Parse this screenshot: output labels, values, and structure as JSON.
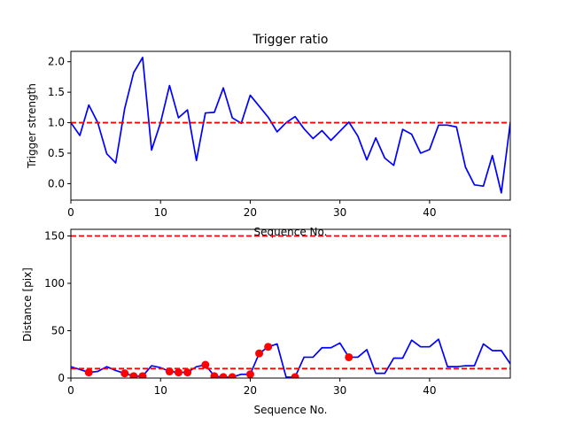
{
  "chart_data": [
    {
      "type": "line",
      "title": "Trigger ratio",
      "xlabel": "Sequence No.",
      "ylabel": "Trigger strength",
      "xlim": [
        0,
        49
      ],
      "ylim": [
        -0.27,
        2.17
      ],
      "xticks": [
        0,
        10,
        20,
        30,
        40
      ],
      "yticks": [
        0.0,
        0.5,
        1.0,
        1.5,
        2.0
      ],
      "ytick_labels": [
        "0.0",
        "0.5",
        "1.0",
        "1.5",
        "2.0"
      ],
      "grid": false,
      "series": [
        {
          "color": "#0000ff",
          "style": "solid",
          "x": [
            0,
            1,
            2,
            3,
            4,
            5,
            6,
            7,
            8,
            9,
            10,
            11,
            12,
            13,
            14,
            15,
            16,
            17,
            18,
            19,
            20,
            21,
            22,
            23,
            24,
            25,
            26,
            27,
            28,
            29,
            30,
            31,
            32,
            33,
            34,
            35,
            36,
            37,
            38,
            39,
            40,
            41,
            42,
            43,
            44,
            45,
            46,
            47,
            48,
            49
          ],
          "values": [
            1.0,
            0.79,
            1.29,
            1.0,
            0.49,
            0.34,
            1.23,
            1.82,
            2.07,
            0.55,
            1.0,
            1.61,
            1.08,
            1.21,
            0.38,
            1.16,
            1.17,
            1.57,
            1.08,
            0.99,
            1.45,
            1.27,
            1.09,
            0.85,
            1.0,
            1.1,
            0.9,
            0.74,
            0.87,
            0.71,
            0.86,
            1.01,
            0.78,
            0.39,
            0.75,
            0.42,
            0.3,
            0.89,
            0.81,
            0.5,
            0.56,
            0.96,
            0.96,
            0.93,
            0.27,
            -0.02,
            -0.04,
            0.46,
            -0.15,
            1.0
          ]
        },
        {
          "color": "#ff0000",
          "style": "dashed",
          "x": [
            0,
            49
          ],
          "values": [
            1.0,
            1.0
          ]
        }
      ]
    },
    {
      "type": "line",
      "title": "",
      "xlabel": "Sequence No.",
      "ylabel": "Distance [pix]",
      "xlim": [
        0,
        49
      ],
      "ylim": [
        0,
        157
      ],
      "xticks": [
        0,
        10,
        20,
        30,
        40
      ],
      "yticks": [
        0,
        50,
        100,
        150
      ],
      "ytick_labels": [
        "0",
        "50",
        "100",
        "150"
      ],
      "grid": false,
      "series": [
        {
          "color": "#0000ff",
          "style": "solid",
          "x": [
            0,
            1,
            2,
            3,
            4,
            5,
            6,
            7,
            8,
            9,
            10,
            11,
            12,
            13,
            14,
            15,
            16,
            17,
            18,
            19,
            20,
            21,
            22,
            23,
            24,
            25,
            26,
            27,
            28,
            29,
            30,
            31,
            32,
            33,
            34,
            35,
            36,
            37,
            38,
            39,
            40,
            41,
            42,
            43,
            44,
            45,
            46,
            47,
            48,
            49
          ],
          "values": [
            12,
            9,
            6,
            7,
            12,
            8,
            5,
            2,
            2,
            13,
            11,
            7,
            6,
            6,
            12,
            14,
            2,
            1,
            1,
            4,
            4,
            26,
            33,
            36,
            1,
            1,
            22,
            22,
            32,
            32,
            37,
            22,
            22,
            30,
            5,
            5,
            21,
            21,
            40,
            33,
            33,
            41,
            12,
            12,
            13,
            13,
            36,
            29,
            29,
            15
          ]
        },
        {
          "color": "#ff0000",
          "style": "dashed",
          "x": [
            0,
            49
          ],
          "values": [
            150,
            150
          ]
        },
        {
          "color": "#ff0000",
          "style": "dashed",
          "x": [
            0,
            49
          ],
          "values": [
            10,
            10
          ]
        },
        {
          "color": "#ff0000",
          "style": "markers",
          "x": [
            2,
            6,
            7,
            8,
            11,
            12,
            13,
            15,
            16,
            17,
            18,
            20,
            21,
            22,
            25,
            31
          ],
          "values": [
            6,
            5,
            2,
            2,
            7,
            6,
            6,
            14,
            2,
            1,
            1,
            4,
            26,
            33,
            1,
            22
          ]
        }
      ]
    }
  ]
}
